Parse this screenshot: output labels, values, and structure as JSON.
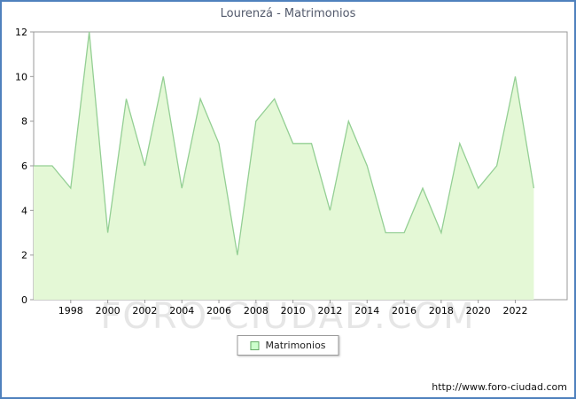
{
  "title": "Lourenzá - Matrimonios",
  "legend": {
    "label": "Matrimonios"
  },
  "watermark": "FORO-CIUDAD.COM",
  "footer": {
    "url": "http://www.foro-ciudad.com"
  },
  "colors": {
    "frame": "#4f81bd",
    "title_text": "#52596b",
    "plot_border": "#9a9a9a",
    "area_fill": "#e4f8d6",
    "area_stroke": "#94cf94",
    "legend_swatch_fill": "#ccffcc",
    "legend_swatch_border": "#66aa66",
    "label_text": "#000000",
    "watermark_text": "#c8c8c8"
  },
  "chart_data": {
    "type": "area",
    "title": "Lourenzá - Matrimonios",
    "series_name": "Matrimonios",
    "x": [
      1996,
      1997,
      1998,
      1999,
      2000,
      2001,
      2002,
      2003,
      2004,
      2005,
      2006,
      2007,
      2008,
      2009,
      2010,
      2011,
      2012,
      2013,
      2014,
      2015,
      2016,
      2017,
      2018,
      2019,
      2020,
      2021,
      2022,
      2023
    ],
    "values": [
      6,
      6,
      5,
      12,
      3,
      9,
      6,
      10,
      5,
      9,
      7,
      2,
      8,
      9,
      7,
      7,
      4,
      8,
      6,
      3,
      3,
      5,
      3,
      7,
      5,
      6,
      10,
      5
    ],
    "x_domain": [
      1996,
      2024.8
    ],
    "ylim": [
      0,
      12
    ],
    "yticks": [
      0,
      2,
      4,
      6,
      8,
      10,
      12
    ],
    "xticks": [
      1998,
      2000,
      2002,
      2004,
      2006,
      2008,
      2010,
      2012,
      2014,
      2016,
      2018,
      2020,
      2022
    ],
    "xlabel": "",
    "ylabel": "",
    "grid": false,
    "legend_position": "bottom-center"
  }
}
